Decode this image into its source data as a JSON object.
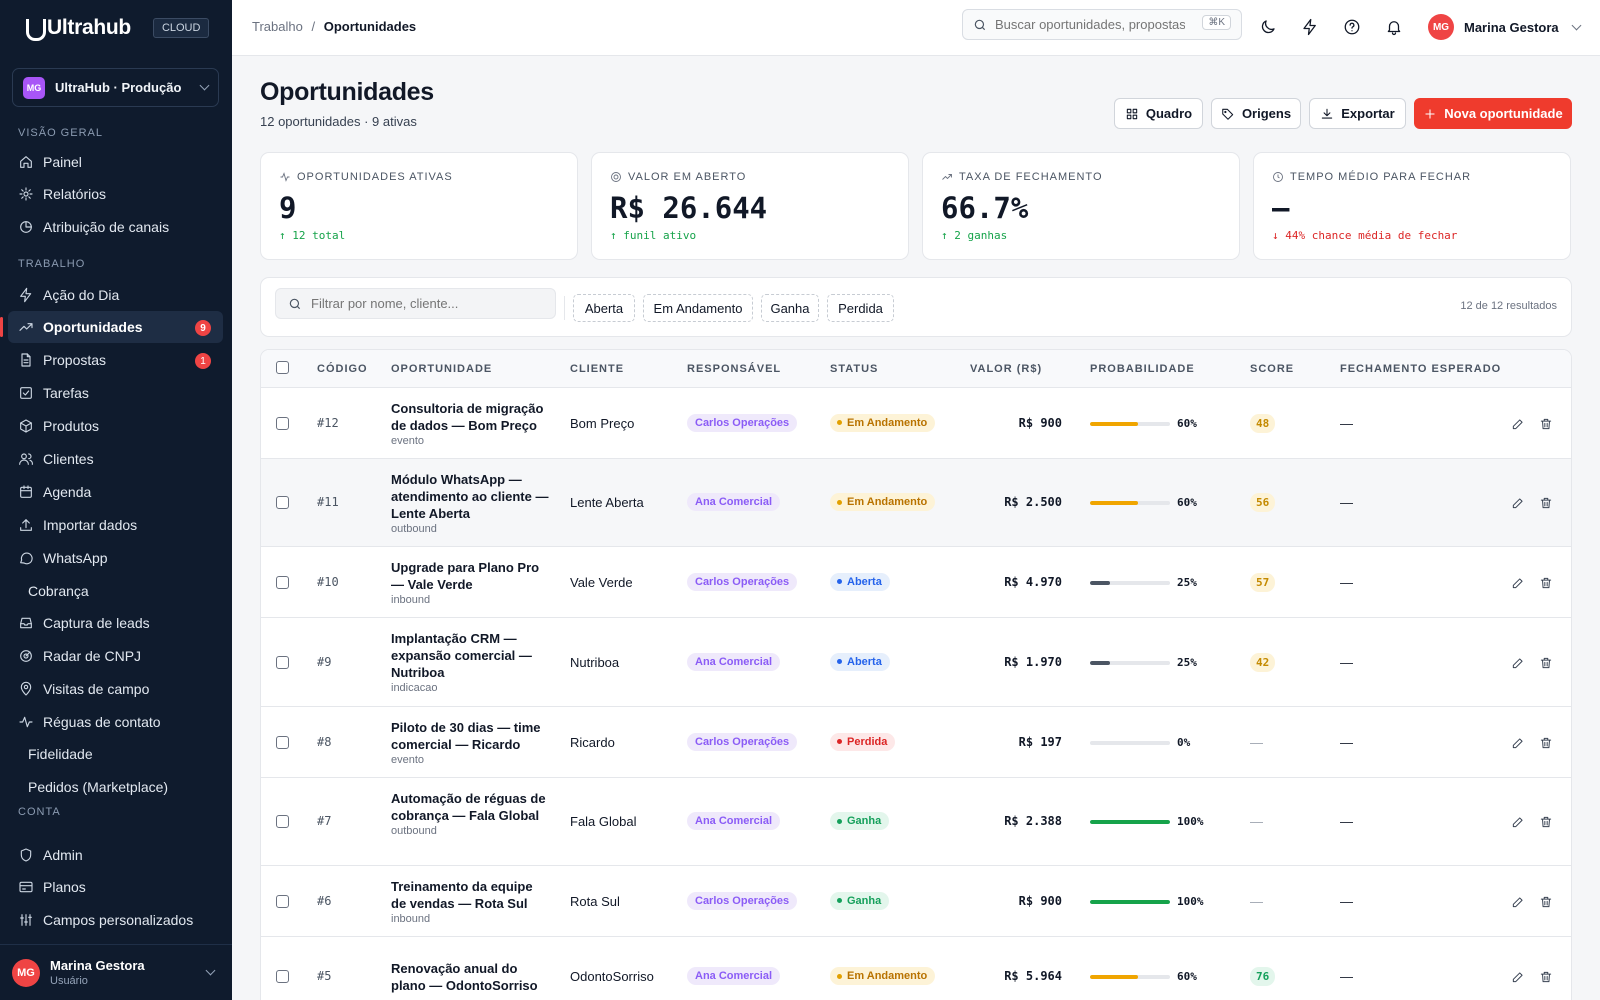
{
  "brand": {
    "name": "Ultrahub",
    "badge": "CLOUD",
    "accent": "#ef3b2d",
    "sidebar_bg": "#0f1b2d"
  },
  "workspace": {
    "initials": "MG",
    "name": "UltraHub · Produção"
  },
  "sidebar": {
    "sections": [
      "VISÃO GERAL",
      "TRABALHO",
      "CONTA"
    ],
    "items": [
      {
        "label": "Painel",
        "icon": "home-icon"
      },
      {
        "label": "Relatórios",
        "icon": "gear-icon"
      },
      {
        "label": "Atribuição de canais",
        "icon": "pie-chart-icon"
      },
      {
        "label": "Ação do Dia",
        "icon": "bolt-icon"
      },
      {
        "label": "Oportunidades",
        "icon": "trending-up-icon",
        "badge": "9",
        "active": true
      },
      {
        "label": "Propostas",
        "icon": "document-icon",
        "badge": "1"
      },
      {
        "label": "Tarefas",
        "icon": "checklist-icon"
      },
      {
        "label": "Produtos",
        "icon": "box-icon"
      },
      {
        "label": "Clientes",
        "icon": "users-icon"
      },
      {
        "label": "Agenda",
        "icon": "calendar-icon"
      },
      {
        "label": "Importar dados",
        "icon": "upload-icon"
      },
      {
        "label": "WhatsApp",
        "icon": "chat-icon"
      },
      {
        "label": "Cobrança",
        "icon": ""
      },
      {
        "label": "Captura de leads",
        "icon": "inbox-icon"
      },
      {
        "label": "Radar de CNPJ",
        "icon": "radar-icon"
      },
      {
        "label": "Visitas de campo",
        "icon": "map-pin-icon"
      },
      {
        "label": "Réguas de contato",
        "icon": "activity-icon"
      },
      {
        "label": "Fidelidade",
        "icon": ""
      },
      {
        "label": "Pedidos (Marketplace)",
        "icon": ""
      },
      {
        "label": "Admin",
        "icon": "shield-icon"
      },
      {
        "label": "Planos",
        "icon": "card-icon"
      },
      {
        "label": "Campos personalizados",
        "icon": "sliders-icon"
      }
    ]
  },
  "footer_user": {
    "initials": "MG",
    "name": "Marina Gestora",
    "role": "Usuário"
  },
  "topbar": {
    "breadcrumb_parent": "Trabalho",
    "breadcrumb_sep": "/",
    "breadcrumb_current": "Oportunidades",
    "search_placeholder": "Buscar oportunidades, propostas...",
    "search_shortcut": "⌘K",
    "user_initials": "MG",
    "user_name": "Marina Gestora"
  },
  "page": {
    "title": "Oportunidades",
    "subtitle": "12 oportunidades · 9 ativas",
    "buttons": {
      "board": "Quadro",
      "sources": "Origens",
      "export": "Exportar",
      "new": "Nova oportunidade"
    }
  },
  "kpis": [
    {
      "label": "OPORTUNIDADES ATIVAS",
      "value": "9",
      "delta": "↑ 12 total",
      "trend": "up"
    },
    {
      "label": "VALOR EM ABERTO",
      "value": "R$ 26.644",
      "delta": "↑ funil ativo",
      "trend": "up"
    },
    {
      "label": "TAXA DE FECHAMENTO",
      "value": "66.7%",
      "delta": "↑ 2 ganhas",
      "trend": "up"
    },
    {
      "label": "TEMPO MÉDIO PARA FECHAR",
      "value": "—",
      "delta": "↓ 44% chance média de fechar",
      "trend": "down"
    }
  ],
  "filters": {
    "placeholder": "Filtrar por nome, cliente...",
    "chips": [
      "Aberta",
      "Em Andamento",
      "Ganha",
      "Perdida"
    ],
    "results": "12 de 12 resultados"
  },
  "table": {
    "headers": [
      "CÓDIGO",
      "OPORTUNIDADE",
      "CLIENTE",
      "RESPONSÁVEL",
      "STATUS",
      "VALOR (R$)",
      "PROBABILIDADE",
      "SCORE",
      "FECHAMENTO ESPERADO"
    ],
    "rows": [
      {
        "code": "#12",
        "title": "Consultoria de migração de dados — Bom Preço",
        "source": "evento",
        "client": "Bom Preço",
        "owner": "Carlos Operações",
        "status": "Em Andamento",
        "value": "R$ 900",
        "probability": 60,
        "prob_label": "60%",
        "score": "48",
        "close": "—"
      },
      {
        "code": "#11",
        "title": "Módulo WhatsApp — atendimento ao cliente — Lente Aberta",
        "source": "outbound",
        "client": "Lente Aberta",
        "owner": "Ana Comercial",
        "status": "Em Andamento",
        "value": "R$ 2.500",
        "probability": 60,
        "prob_label": "60%",
        "score": "56",
        "close": "—"
      },
      {
        "code": "#10",
        "title": "Upgrade para Plano Pro — Vale Verde",
        "source": "inbound",
        "client": "Vale Verde",
        "owner": "Carlos Operações",
        "status": "Aberta",
        "value": "R$ 4.970",
        "probability": 25,
        "prob_label": "25%",
        "score": "57",
        "close": "—"
      },
      {
        "code": "#9",
        "title": "Implantação CRM — expansão comercial — Nutriboa",
        "source": "indicacao",
        "client": "Nutriboa",
        "owner": "Ana Comercial",
        "status": "Aberta",
        "value": "R$ 1.970",
        "probability": 25,
        "prob_label": "25%",
        "score": "42",
        "close": "—"
      },
      {
        "code": "#8",
        "title": "Piloto de 30 dias — time comercial — Ricardo",
        "source": "evento",
        "client": "Ricardo",
        "owner": "Carlos Operações",
        "status": "Perdida",
        "value": "R$ 197",
        "probability": 0,
        "prob_label": "0%",
        "score": "—",
        "close": "—"
      },
      {
        "code": "#7",
        "title": "Automação de réguas de cobrança — Fala Global",
        "source": "outbound",
        "client": "Fala Global",
        "owner": "Ana Comercial",
        "status": "Ganha",
        "value": "R$ 2.388",
        "probability": 100,
        "prob_label": "100%",
        "score": "—",
        "close": "—"
      },
      {
        "code": "#6",
        "title": "Treinamento da equipe de vendas — Rota Sul",
        "source": "inbound",
        "client": "Rota Sul",
        "owner": "Carlos Operações",
        "status": "Ganha",
        "value": "R$ 900",
        "probability": 100,
        "prob_label": "100%",
        "score": "—",
        "close": "—"
      },
      {
        "code": "#5",
        "title": "Renovação anual do plano — OdontoSorriso",
        "source": "",
        "client": "OdontoSorriso",
        "owner": "Ana Comercial",
        "status": "Em Andamento",
        "value": "R$ 5.964",
        "probability": 60,
        "prob_label": "60%",
        "score": "76",
        "close": "—"
      }
    ]
  }
}
